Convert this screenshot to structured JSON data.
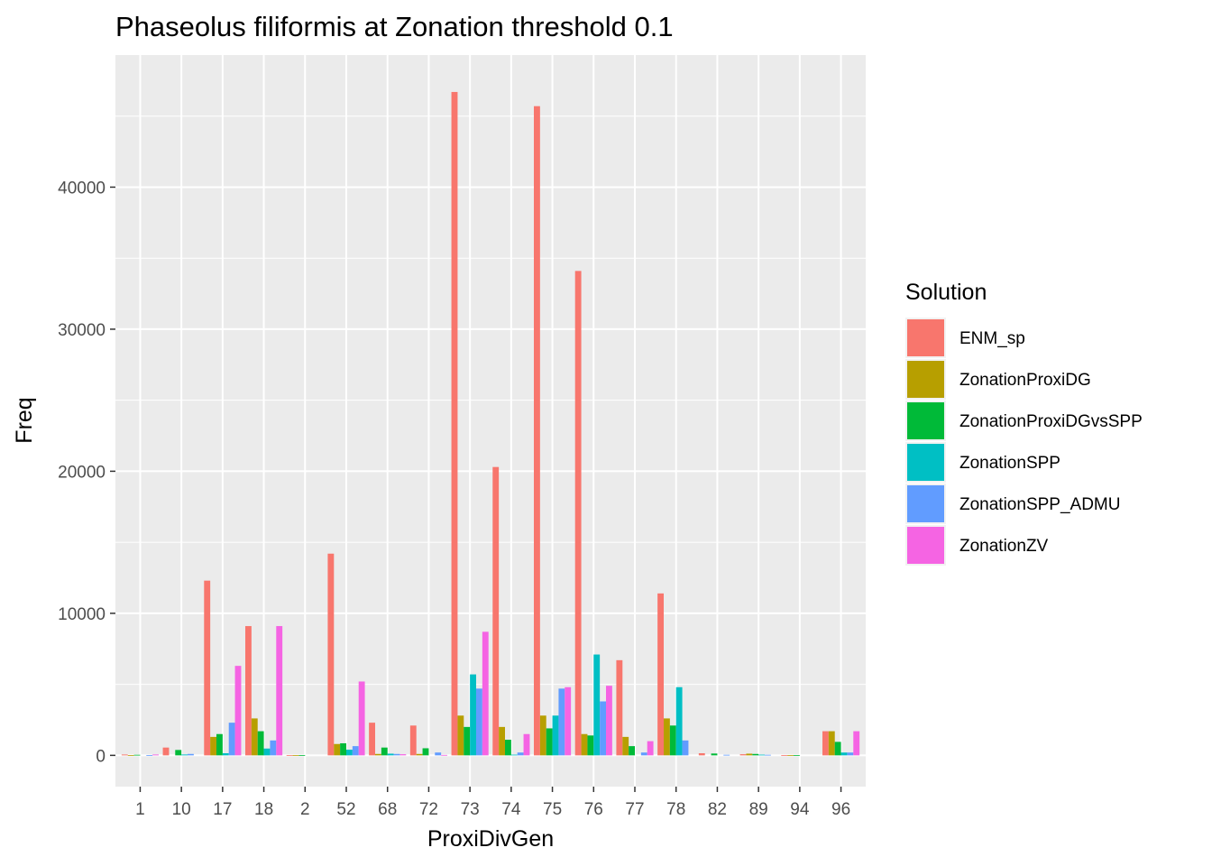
{
  "chart_data": {
    "type": "bar",
    "title": "Phaseolus filiformis at Zonation threshold 0.1",
    "xlabel": "ProxiDivGen",
    "ylabel": "Freq",
    "ylim": [
      -2200,
      49300
    ],
    "yticks": [
      0,
      10000,
      20000,
      30000,
      40000
    ],
    "grid": true,
    "legend": {
      "title": "Solution",
      "position": "right"
    },
    "categories": [
      "1",
      "10",
      "17",
      "18",
      "2",
      "52",
      "68",
      "72",
      "73",
      "74",
      "75",
      "76",
      "77",
      "78",
      "82",
      "89",
      "94",
      "96"
    ],
    "series": [
      {
        "name": "ENM_sp",
        "color": "#F8766D",
        "values": [
          60,
          550,
          12300,
          9100,
          10,
          14200,
          2300,
          2100,
          46700,
          20300,
          45700,
          34100,
          6700,
          11400,
          150,
          80,
          10,
          1700
        ]
      },
      {
        "name": "ZonationProxiDG",
        "color": "#B79F00",
        "values": [
          20,
          0,
          1300,
          2600,
          10,
          800,
          100,
          100,
          2800,
          2000,
          2800,
          1500,
          1300,
          2600,
          0,
          120,
          10,
          1700
        ]
      },
      {
        "name": "ZonationProxiDGvsSPP",
        "color": "#00BA38",
        "values": [
          40,
          380,
          1500,
          1700,
          10,
          850,
          550,
          500,
          2000,
          1100,
          1900,
          1400,
          650,
          2100,
          130,
          100,
          10,
          950
        ]
      },
      {
        "name": "ZonationSPP",
        "color": "#00BFC4",
        "values": [
          0,
          60,
          150,
          480,
          0,
          400,
          120,
          0,
          5700,
          50,
          2800,
          7100,
          0,
          4800,
          0,
          50,
          0,
          200
        ]
      },
      {
        "name": "ZonationSPP_ADMU",
        "color": "#619CFF",
        "values": [
          20,
          100,
          2300,
          1050,
          0,
          650,
          100,
          200,
          4700,
          200,
          4700,
          3800,
          200,
          1050,
          40,
          40,
          0,
          200
        ]
      },
      {
        "name": "ZonationZV",
        "color": "#F564E3",
        "values": [
          60,
          0,
          6300,
          9100,
          0,
          5200,
          80,
          30,
          8700,
          1500,
          4800,
          4900,
          1000,
          0,
          0,
          0,
          0,
          1700
        ]
      }
    ]
  }
}
